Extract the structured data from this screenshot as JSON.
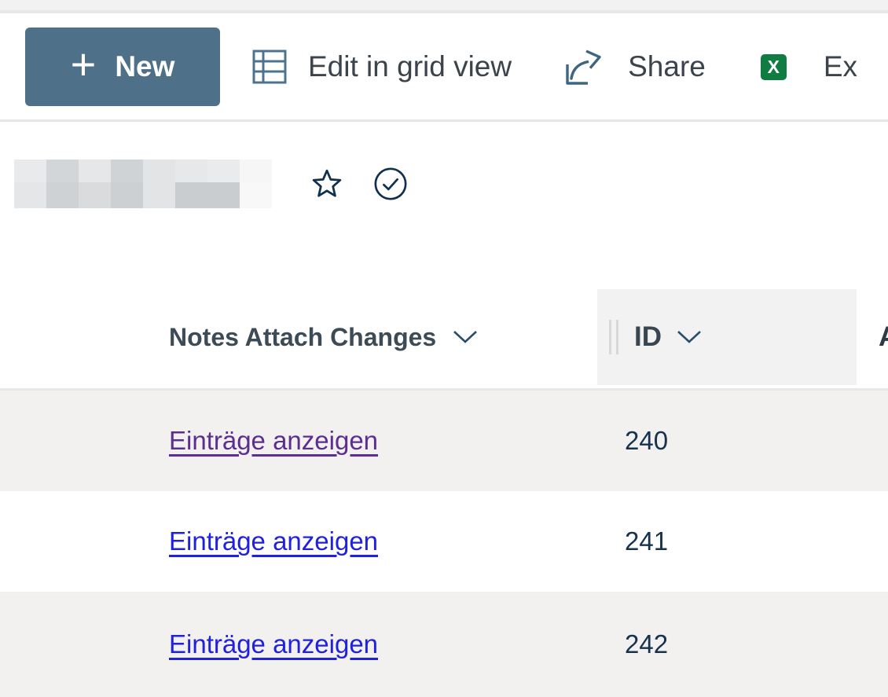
{
  "colors": {
    "accent_button": "#4e7189",
    "icon_navy": "#11304e",
    "chevron_navy": "#2a4d6e",
    "link_visited": "#5b2e90",
    "link_unvisited": "#2020df",
    "row_alt_bg": "#f2f1ef",
    "id_header_bg": "#f3f2f2",
    "excel_green_light": "#33c481",
    "excel_green": "#21a366",
    "excel_green_mid": "#107c41",
    "excel_green_dark": "#185c37"
  },
  "command_bar": {
    "new_button": "New",
    "new_plus": "+",
    "edit_in_grid_view": "Edit in grid view",
    "share": "Share",
    "export_truncated": "Ex",
    "excel_letter": "X"
  },
  "list_title": {
    "redacted": true,
    "redacted_blocks": [
      "#e9eaeb",
      "#d3d6d8",
      "#e5e7e8",
      "#cfd3d5",
      "#e2e4e5",
      "#e7e8e9",
      "#eaebec",
      "#f6f6f6",
      "#e5e6e7",
      "#ced2d4",
      "#d9dbdd",
      "#ccd0d2",
      "#e2e4e5",
      "#c9cdcf",
      "#c9cdcf",
      "#f8f8f8"
    ]
  },
  "table": {
    "columns": {
      "col1": "Notes Attach Changes",
      "col2": "ID",
      "col3_truncated": "A"
    },
    "rows": [
      {
        "link": "Einträge anzeigen",
        "id": "240",
        "visited": true
      },
      {
        "link": "Einträge anzeigen",
        "id": "241",
        "visited": false
      },
      {
        "link": "Einträge anzeigen",
        "id": "242",
        "visited": false
      }
    ]
  }
}
